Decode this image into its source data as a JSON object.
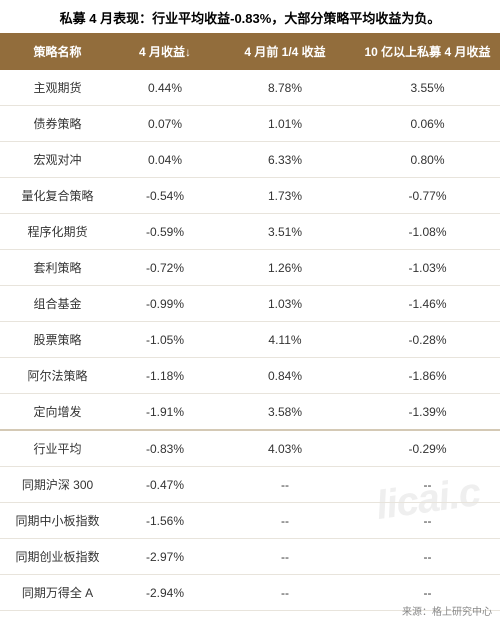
{
  "title": "私募 4 月表现：行业平均收益-0.83%，大部分策略平均收益为负。",
  "table": {
    "columns": [
      "策略名称",
      "4 月收益↓",
      "4 月前 1/4 收益",
      "10 亿以上私募 4 月收益"
    ],
    "rows": [
      [
        "主观期货",
        "0.44%",
        "8.78%",
        "3.55%"
      ],
      [
        "债券策略",
        "0.07%",
        "1.01%",
        "0.06%"
      ],
      [
        "宏观对冲",
        "0.04%",
        "6.33%",
        "0.80%"
      ],
      [
        "量化复合策略",
        "-0.54%",
        "1.73%",
        "-0.77%"
      ],
      [
        "程序化期货",
        "-0.59%",
        "3.51%",
        "-1.08%"
      ],
      [
        "套利策略",
        "-0.72%",
        "1.26%",
        "-1.03%"
      ],
      [
        "组合基金",
        "-0.99%",
        "1.03%",
        "-1.46%"
      ],
      [
        "股票策略",
        "-1.05%",
        "4.11%",
        "-0.28%"
      ],
      [
        "阿尔法策略",
        "-1.18%",
        "0.84%",
        "-1.86%"
      ],
      [
        "定向增发",
        "-1.91%",
        "3.58%",
        "-1.39%"
      ]
    ],
    "summary_rows": [
      [
        "行业平均",
        "-0.83%",
        "4.03%",
        "-0.29%"
      ],
      [
        "同期沪深 300",
        "-0.47%",
        "--",
        "--"
      ],
      [
        "同期中小板指数",
        "-1.56%",
        "--",
        "--"
      ],
      [
        "同期创业板指数",
        "-2.97%",
        "--",
        "--"
      ],
      [
        "同期万得全 A",
        "-2.94%",
        "--",
        "--"
      ]
    ],
    "header_bg": "#926d3c",
    "header_fg": "#ffffff",
    "border_color": "#e8e4dc",
    "divider_color": "#d4c9b5",
    "text_color": "#333333",
    "font_size": 12,
    "title_font_size": 13
  },
  "source": "来源：格上研究中心",
  "watermark": "licai.c",
  "background_color": "#ffffff"
}
